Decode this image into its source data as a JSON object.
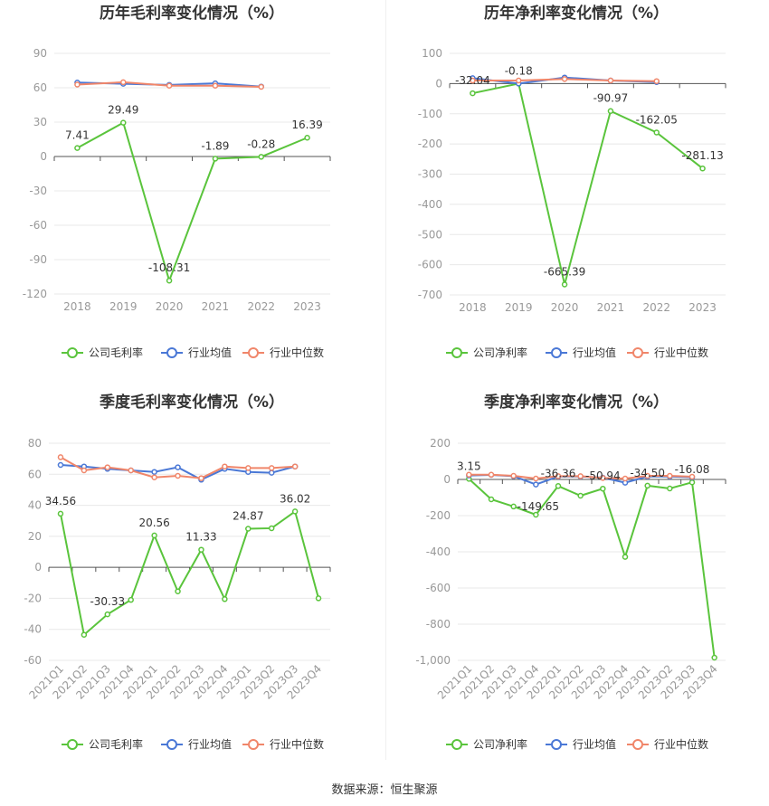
{
  "source_label": "数据来源：恒生聚源",
  "colors": {
    "company": "#5ac43c",
    "avg": "#4a78d6",
    "median": "#f0866a",
    "grid": "#e8e8e8",
    "axis": "#555555"
  },
  "legend_common": {
    "avg": "行业均值",
    "median": "行业中位数"
  },
  "chart_data": [
    {
      "type": "line",
      "title": "历年毛利率变化情况（%）",
      "categories": [
        "2018",
        "2019",
        "2020",
        "2021",
        "2022",
        "2023"
      ],
      "yticks": [
        90,
        60,
        30,
        0,
        -30,
        -60,
        -90,
        -120
      ],
      "ylim": [
        -120,
        90
      ],
      "legend": [
        "公司毛利率",
        "行业均值",
        "行业中位数"
      ],
      "series": [
        {
          "name": "公司毛利率",
          "values": [
            7.41,
            29.49,
            -108.31,
            -1.89,
            -0.28,
            16.39
          ]
        },
        {
          "name": "行业均值",
          "values": [
            64.5,
            63.5,
            62.5,
            63.8,
            61.0,
            null
          ]
        },
        {
          "name": "行业中位数",
          "values": [
            62.8,
            64.8,
            61.8,
            61.8,
            60.8,
            null
          ]
        }
      ],
      "labels": [
        "7.41",
        "29.49",
        "-108.31",
        "-1.89",
        "-0.28",
        "16.39"
      ],
      "label_pos": [
        "up",
        "up",
        "up",
        "up",
        "up",
        "up"
      ]
    },
    {
      "type": "line",
      "title": "历年净利率变化情况（%）",
      "categories": [
        "2018",
        "2019",
        "2020",
        "2021",
        "2022",
        "2023"
      ],
      "yticks": [
        100,
        0,
        -100,
        -200,
        -300,
        -400,
        -500,
        -600,
        -700
      ],
      "ylim": [
        -700,
        100
      ],
      "legend": [
        "公司净利率",
        "行业均值",
        "行业中位数"
      ],
      "series": [
        {
          "name": "公司净利率",
          "values": [
            -32.04,
            -0.18,
            -665.39,
            -90.97,
            -162.05,
            -281.13
          ]
        },
        {
          "name": "行业均值",
          "values": [
            18,
            0,
            20,
            10,
            5,
            null
          ]
        },
        {
          "name": "行业中位数",
          "values": [
            10,
            10,
            15,
            10,
            8,
            null
          ]
        }
      ],
      "labels": [
        "-32.04",
        "-0.18",
        "-665.39",
        "-90.97",
        "-162.05",
        "-281.13"
      ],
      "label_pos": [
        "up",
        "up",
        "up",
        "up",
        "up",
        "up"
      ]
    },
    {
      "type": "line",
      "title": "季度毛利率变化情况（%）",
      "categories": [
        "2021Q1",
        "2021Q2",
        "2021Q3",
        "2021Q4",
        "2022Q1",
        "2022Q2",
        "2022Q3",
        "2022Q4",
        "2023Q1",
        "2023Q2",
        "2023Q3",
        "2023Q4"
      ],
      "yticks": [
        80,
        60,
        40,
        20,
        0,
        -20,
        -40,
        -60
      ],
      "ylim": [
        -60,
        80
      ],
      "legend": [
        "公司毛利率",
        "行业均值",
        "行业中位数"
      ],
      "series": [
        {
          "name": "公司毛利率",
          "values": [
            34.56,
            -43.5,
            -30.33,
            -21,
            20.56,
            -15.5,
            11.33,
            -20.5,
            24.87,
            25.2,
            36.02,
            -20
          ]
        },
        {
          "name": "行业均值",
          "values": [
            66,
            65,
            63.5,
            62.5,
            61.5,
            64.5,
            56.5,
            63.5,
            61.5,
            61,
            65,
            null
          ]
        },
        {
          "name": "行业中位数",
          "values": [
            71,
            62.5,
            64.5,
            62.5,
            58,
            59,
            57.5,
            65,
            64,
            64,
            65,
            null
          ]
        }
      ],
      "labels": [
        "34.56",
        "",
        "-30.33",
        "",
        "20.56",
        "",
        "11.33",
        "",
        "24.87",
        "",
        "36.02",
        ""
      ],
      "label_pos": [
        "up",
        "up",
        "up",
        "up",
        "up",
        "up",
        "up",
        "up",
        "up",
        "up",
        "up",
        "up"
      ]
    },
    {
      "type": "line",
      "title": "季度净利率变化情况（%）",
      "categories": [
        "2021Q1",
        "2021Q2",
        "2021Q3",
        "2021Q4",
        "2022Q1",
        "2022Q2",
        "2022Q3",
        "2022Q4",
        "2023Q1",
        "2023Q2",
        "2023Q3",
        "2023Q4"
      ],
      "yticks": [
        200,
        0,
        -200,
        -400,
        -600,
        -800,
        -1000
      ],
      "ytick_labels": [
        "200",
        "0",
        "-200",
        "-400",
        "-600",
        "-800",
        "-1,000"
      ],
      "ylim": [
        -1000,
        200
      ],
      "legend": [
        "公司净利率",
        "行业均值",
        "行业中位数"
      ],
      "series": [
        {
          "name": "公司净利率",
          "values": [
            3.15,
            -110,
            -149.65,
            -195,
            -36.36,
            -90,
            -50.94,
            -428,
            -34.5,
            -50,
            -16.08,
            -985
          ]
        },
        {
          "name": "行业均值",
          "values": [
            22,
            25,
            18,
            -28,
            16,
            16,
            10,
            -18,
            16,
            16,
            12,
            null
          ]
        },
        {
          "name": "行业中位数",
          "values": [
            26,
            26,
            20,
            5,
            18,
            18,
            8,
            5,
            20,
            20,
            15,
            null
          ]
        }
      ],
      "labels": [
        "3.15",
        "",
        "-149.65",
        "",
        "-36.36",
        "",
        "-50.94",
        "",
        "-34.50",
        "",
        "-16.08",
        ""
      ],
      "label_pos": [
        "up",
        "up",
        "right",
        "up",
        "up",
        "up",
        "up",
        "up",
        "up",
        "up",
        "up",
        "up"
      ]
    }
  ]
}
